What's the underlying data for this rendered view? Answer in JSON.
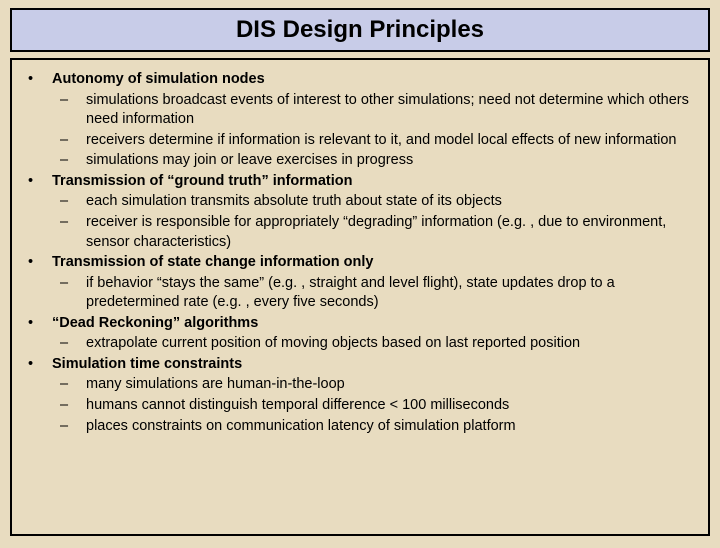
{
  "colors": {
    "background": "#e8dcc0",
    "title_bg": "#c8cce8",
    "border": "#000000",
    "text": "#000000"
  },
  "typography": {
    "title_fontsize": 24,
    "body_fontsize": 14.5,
    "font_family": "Arial"
  },
  "title": "DIS Design Principles",
  "bullets": [
    {
      "heading": "Autonomy of simulation nodes",
      "subs": [
        "simulations broadcast events of interest to other simulations; need not determine which others need information",
        "receivers determine if information is relevant to it, and model local effects of new information",
        "simulations may join or leave exercises in progress"
      ]
    },
    {
      "heading": "Transmission of “ground truth” information",
      "subs": [
        "each simulation transmits absolute truth about state of its objects",
        "receiver is responsible for appropriately “degrading” information (e.g. , due to environment, sensor characteristics)"
      ]
    },
    {
      "heading": "Transmission of state change information only",
      "subs": [
        "if behavior “stays the same” (e.g. , straight and level flight), state updates drop to a predetermined rate (e.g. , every five seconds)"
      ]
    },
    {
      "heading": "“Dead Reckoning” algorithms",
      "subs": [
        "extrapolate current position of moving objects based on last reported position"
      ]
    },
    {
      "heading": "Simulation time constraints",
      "subs": [
        "many simulations are human-in-the-loop",
        "humans cannot distinguish temporal difference < 100 milliseconds",
        "places constraints on communication latency of simulation platform"
      ]
    }
  ]
}
